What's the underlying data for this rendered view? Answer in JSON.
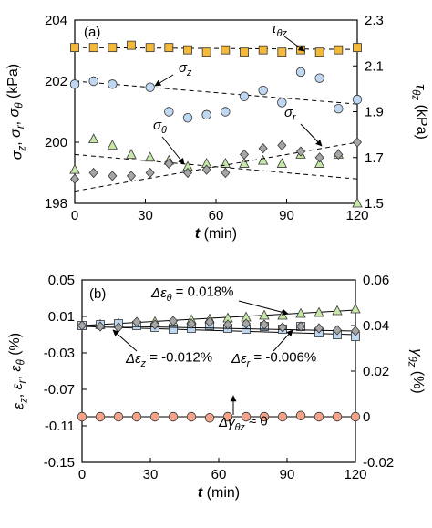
{
  "chart_data": [
    {
      "panel_label": "(a)",
      "type": "scatter",
      "xlabel": "t (min)",
      "x_ticks": [
        0,
        30,
        60,
        90,
        120
      ],
      "xlim": [
        0,
        120
      ],
      "left_axis": {
        "label": "σz, σr, σθ (kPa)",
        "ylim": [
          198,
          204
        ],
        "ticks": [
          198,
          200,
          202,
          204
        ]
      },
      "right_axis": {
        "label": "τθz (kPa)",
        "ylim": [
          1.5,
          2.3
        ],
        "ticks": [
          "1.5",
          "1.7",
          "1.9",
          "2.1",
          "2.3"
        ]
      },
      "annotations": [
        {
          "text": "τθz",
          "target_series": "tau"
        },
        {
          "text": "σz",
          "target_series": "sz"
        },
        {
          "text": "σθ",
          "target_series": "stheta"
        },
        {
          "text": "σr",
          "target_series": "sr"
        }
      ],
      "series": [
        {
          "id": "tau",
          "axis": "right",
          "marker": "square",
          "color": "#F2B93B",
          "x": [
            0,
            8,
            16,
            24,
            32,
            40,
            48,
            56,
            64,
            72,
            80,
            88,
            96,
            104,
            112,
            120
          ],
          "y": [
            2.18,
            2.18,
            2.18,
            2.19,
            2.18,
            2.18,
            2.17,
            2.16,
            2.17,
            2.16,
            2.17,
            2.16,
            2.17,
            2.16,
            2.17,
            2.18
          ],
          "trend": [
            2.18,
            2.172
          ]
        },
        {
          "id": "sz",
          "axis": "left",
          "marker": "circle",
          "color": "#BFD7F0",
          "x": [
            0,
            8,
            16,
            32,
            40,
            48,
            56,
            64,
            72,
            80,
            88,
            96,
            104,
            112,
            120
          ],
          "y": [
            201.9,
            202.0,
            201.9,
            201.8,
            201.0,
            200.8,
            200.9,
            201.0,
            201.5,
            201.7,
            201.3,
            202.3,
            202.1,
            201.1,
            201.4
          ],
          "trend": [
            202.0,
            201.25
          ]
        },
        {
          "id": "stheta",
          "axis": "left",
          "marker": "triangle",
          "color": "#C6E7A8",
          "x": [
            0,
            8,
            16,
            24,
            32,
            40,
            48,
            56,
            64,
            72,
            80,
            88,
            96,
            104,
            112,
            120
          ],
          "y": [
            199.1,
            200.1,
            199.9,
            199.6,
            199.5,
            199.4,
            199.2,
            199.3,
            199.3,
            199.3,
            199.4,
            199.3,
            199.6,
            199.3,
            199.6,
            198.0
          ],
          "trend": [
            199.6,
            198.8
          ]
        },
        {
          "id": "sr",
          "axis": "left",
          "marker": "diamond",
          "color": "#A6A6A6",
          "x": [
            0,
            8,
            16,
            24,
            32,
            40,
            48,
            56,
            64,
            72,
            80,
            88,
            96,
            104,
            112,
            120
          ],
          "y": [
            198.8,
            199.0,
            198.9,
            198.9,
            199.0,
            199.3,
            199.0,
            199.1,
            199.0,
            199.6,
            199.8,
            199.9,
            199.7,
            199.5,
            199.6,
            200.0
          ],
          "trend": [
            198.4,
            200.0
          ]
        }
      ]
    },
    {
      "panel_label": "(b)",
      "type": "scatter",
      "xlabel": "t (min)",
      "x_ticks": [
        0,
        30,
        60,
        90,
        120
      ],
      "xlim": [
        0,
        120
      ],
      "left_axis": {
        "label": "εz, εr, εθ (%)",
        "ylim": [
          -0.15,
          0.05
        ],
        "ticks": [
          "-0.15",
          "-0.11",
          "-0.07",
          "-0.03",
          "0.01",
          "0.05"
        ]
      },
      "right_axis": {
        "label": "γθz (%)",
        "ylim": [
          -0.02,
          0.06
        ],
        "ticks": [
          "-0.02",
          "0",
          "0.02",
          "0.04",
          "0.06"
        ]
      },
      "annotations": [
        {
          "text": "Δεθ = 0.018%",
          "target_series": "etheta"
        },
        {
          "text": "Δεz = -0.012%",
          "target_series": "ez"
        },
        {
          "text": "Δεr = -0.006%",
          "target_series": "er"
        },
        {
          "text": "Δγθz ≈ 0",
          "target_series": "gamma"
        }
      ],
      "series": [
        {
          "id": "etheta",
          "axis": "left",
          "marker": "triangle",
          "color": "#C6E7A8",
          "x": [
            0,
            8,
            16,
            24,
            32,
            40,
            48,
            56,
            64,
            72,
            80,
            88,
            96,
            104,
            112,
            120
          ],
          "y": [
            0.0,
            0.001,
            0.002,
            0.003,
            0.004,
            0.004,
            0.006,
            0.007,
            0.008,
            0.009,
            0.011,
            0.011,
            0.013,
            0.014,
            0.016,
            0.018
          ],
          "trend": [
            0.0,
            0.017
          ]
        },
        {
          "id": "ez",
          "axis": "left",
          "marker": "square",
          "color": "#BFD7F0",
          "x": [
            0,
            8,
            16,
            24,
            32,
            40,
            48,
            56,
            64,
            72,
            80,
            88,
            96,
            104,
            112,
            120
          ],
          "y": [
            0.0,
            0.001,
            0.002,
            0.0,
            -0.002,
            -0.004,
            -0.003,
            0.0,
            -0.003,
            -0.004,
            -0.001,
            -0.004,
            -0.001,
            -0.008,
            -0.01,
            -0.012
          ],
          "trend": [
            -0.001,
            -0.01
          ]
        },
        {
          "id": "er",
          "axis": "left",
          "marker": "diamond",
          "color": "#A6A6A6",
          "x": [
            0,
            8,
            16,
            24,
            32,
            40,
            48,
            56,
            64,
            72,
            80,
            88,
            96,
            104,
            112,
            120
          ],
          "y": [
            0.0,
            -0.001,
            -0.002,
            0.004,
            0.001,
            0.005,
            0.002,
            0.004,
            0.001,
            0.002,
            0.001,
            -0.002,
            -0.001,
            -0.003,
            -0.005,
            -0.006
          ],
          "trend": [
            0.0,
            -0.006
          ]
        },
        {
          "id": "gamma",
          "axis": "right",
          "marker": "circle",
          "color": "#F2A48A",
          "x": [
            0,
            8,
            16,
            24,
            32,
            40,
            48,
            56,
            64,
            72,
            80,
            88,
            96,
            104,
            112,
            120
          ],
          "y": [
            0.0,
            0.0,
            0.0,
            0.0,
            0.0,
            0.0,
            0.0,
            -0.0005,
            0.0,
            0.0,
            0.0,
            0.0,
            0.0005,
            0.0,
            0.0,
            0.0
          ],
          "trend": [
            0.0,
            0.0
          ]
        }
      ]
    }
  ]
}
